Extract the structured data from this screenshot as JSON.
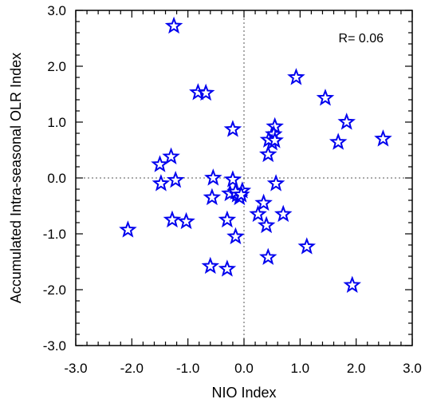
{
  "chart_data": {
    "type": "scatter",
    "xlabel": "NIO Index",
    "ylabel": "Accumulated Intra-seasonal OLR Index",
    "xlim": [
      -3.0,
      3.0
    ],
    "ylim": [
      -3.0,
      3.0
    ],
    "xticks": [
      "-3.0",
      "-2.0",
      "-1.0",
      "0.0",
      "1.0",
      "2.0",
      "3.0"
    ],
    "yticks": [
      "-3.0",
      "-2.0",
      "-1.0",
      "0.0",
      "1.0",
      "2.0",
      "3.0"
    ],
    "annotation": "R= 0.06",
    "marker": "star",
    "marker_color": "#0000ee",
    "zero_lines": "dotted",
    "grid": false,
    "points": [
      {
        "x": -1.25,
        "y": 2.72
      },
      {
        "x": -0.82,
        "y": 1.53
      },
      {
        "x": -0.68,
        "y": 1.52
      },
      {
        "x": -0.2,
        "y": 0.87
      },
      {
        "x": 0.93,
        "y": 1.8
      },
      {
        "x": 1.45,
        "y": 1.43
      },
      {
        "x": 1.83,
        "y": 1.0
      },
      {
        "x": 1.68,
        "y": 0.64
      },
      {
        "x": 2.48,
        "y": 0.7
      },
      {
        "x": 0.55,
        "y": 0.92
      },
      {
        "x": 0.53,
        "y": 0.78
      },
      {
        "x": 0.5,
        "y": 0.63
      },
      {
        "x": 0.44,
        "y": 0.68
      },
      {
        "x": 0.55,
        "y": 0.67
      },
      {
        "x": 0.43,
        "y": 0.42
      },
      {
        "x": -1.3,
        "y": 0.38
      },
      {
        "x": -1.5,
        "y": 0.24
      },
      {
        "x": -1.48,
        "y": -0.1
      },
      {
        "x": -1.22,
        "y": -0.04
      },
      {
        "x": -0.55,
        "y": 0.0
      },
      {
        "x": -0.2,
        "y": -0.03
      },
      {
        "x": 0.57,
        "y": -0.1
      },
      {
        "x": -0.25,
        "y": -0.28
      },
      {
        "x": -0.12,
        "y": -0.3
      },
      {
        "x": -0.03,
        "y": -0.23
      },
      {
        "x": -0.08,
        "y": -0.35
      },
      {
        "x": -0.15,
        "y": -0.25
      },
      {
        "x": -0.05,
        "y": -0.3
      },
      {
        "x": -0.57,
        "y": -0.35
      },
      {
        "x": 0.35,
        "y": -0.45
      },
      {
        "x": 0.25,
        "y": -0.65
      },
      {
        "x": 0.7,
        "y": -0.65
      },
      {
        "x": -0.3,
        "y": -0.75
      },
      {
        "x": -1.28,
        "y": -0.75
      },
      {
        "x": -1.03,
        "y": -0.78
      },
      {
        "x": 0.4,
        "y": -0.85
      },
      {
        "x": -2.07,
        "y": -0.93
      },
      {
        "x": -0.15,
        "y": -1.05
      },
      {
        "x": 1.12,
        "y": -1.23
      },
      {
        "x": 0.43,
        "y": -1.42
      },
      {
        "x": -0.6,
        "y": -1.58
      },
      {
        "x": -0.3,
        "y": -1.63
      },
      {
        "x": 1.93,
        "y": -1.92
      }
    ]
  }
}
